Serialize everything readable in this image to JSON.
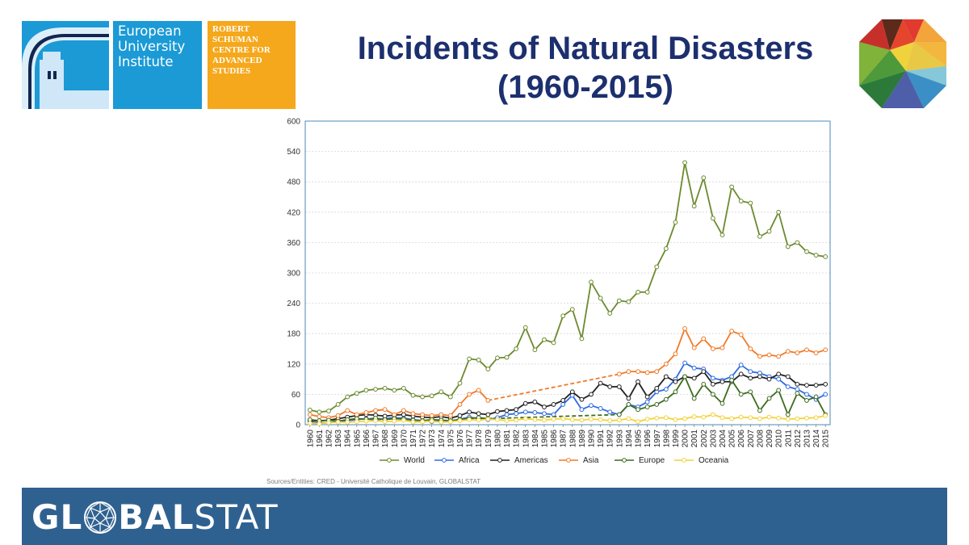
{
  "header": {
    "eui_lines": [
      "European",
      "University",
      "Institute"
    ],
    "rsc_lines": [
      "ROBERT",
      "SCHUMAN",
      "CENTRE FOR",
      "ADVANCED",
      "STUDIES"
    ],
    "title_line1": "Incidents of Natural Disasters",
    "title_line2": "(1960-2015)"
  },
  "footer": {
    "source": "Sources/Entities: CRED - Université Catholique de Louvain, GLOBALSTAT",
    "brand_left": "GL",
    "brand_mid": "BAL",
    "brand_right": "STAT"
  },
  "colors": {
    "title": "#1c2f6e",
    "eui_blue": "#1b9ad6",
    "rsc_orange": "#f5a81c",
    "footer": "#2f6190"
  },
  "chart_data": {
    "type": "line",
    "title": "Incidents of Natural Disasters (1960-2015)",
    "xlabel": "",
    "ylabel": "",
    "ylim": [
      0,
      600
    ],
    "yticks": [
      0,
      60,
      120,
      180,
      240,
      300,
      360,
      420,
      480,
      540,
      600
    ],
    "grid": true,
    "legend_position": "bottom",
    "x": [
      1960,
      1961,
      1962,
      1963,
      1964,
      1965,
      1966,
      1967,
      1968,
      1969,
      1970,
      1971,
      1972,
      1973,
      1974,
      1975,
      1976,
      1977,
      1978,
      1979,
      1980,
      1981,
      1982,
      1983,
      1984,
      1985,
      1986,
      1987,
      1988,
      1989,
      1990,
      1991,
      1992,
      1993,
      1994,
      1995,
      1996,
      1997,
      1998,
      1999,
      2000,
      2001,
      2002,
      2003,
      2004,
      2005,
      2006,
      2007,
      2008,
      2009,
      2010,
      2011,
      2012,
      2013,
      2014,
      2015
    ],
    "series": [
      {
        "name": "World",
        "color": "#6b8a2e",
        "dashed_until": null,
        "values": [
          29,
          25,
          27,
          40,
          55,
          62,
          68,
          70,
          72,
          68,
          72,
          58,
          55,
          57,
          65,
          55,
          82,
          130,
          128,
          110,
          132,
          133,
          150,
          192,
          148,
          168,
          162,
          215,
          228,
          170,
          282,
          250,
          220,
          245,
          243,
          262,
          262,
          312,
          348,
          400,
          518,
          432,
          488,
          408,
          375,
          470,
          442,
          438,
          372,
          382,
          420,
          352,
          360,
          342,
          335,
          332
        ]
      },
      {
        "name": "Africa",
        "color": "#2f6be0",
        "dashed_until": null,
        "values": [
          5,
          3,
          4,
          6,
          8,
          10,
          12,
          9,
          12,
          14,
          13,
          10,
          8,
          6,
          9,
          7,
          11,
          15,
          12,
          10,
          14,
          20,
          22,
          25,
          24,
          22,
          20,
          40,
          58,
          30,
          38,
          32,
          25,
          20,
          40,
          35,
          45,
          65,
          70,
          90,
          122,
          112,
          110,
          92,
          88,
          95,
          118,
          105,
          102,
          95,
          90,
          75,
          70,
          60,
          50,
          60
        ]
      },
      {
        "name": "Americas",
        "color": "#222222",
        "dashed_until": null,
        "values": [
          8,
          7,
          9,
          12,
          15,
          18,
          20,
          19,
          17,
          19,
          20,
          17,
          15,
          14,
          16,
          13,
          18,
          25,
          22,
          20,
          26,
          28,
          30,
          42,
          45,
          35,
          40,
          48,
          65,
          50,
          60,
          82,
          75,
          75,
          52,
          85,
          55,
          72,
          95,
          85,
          95,
          92,
          105,
          80,
          85,
          85,
          100,
          92,
          95,
          90,
          100,
          95,
          80,
          78,
          78,
          80
        ]
      },
      {
        "name": "Asia",
        "color": "#f07a28",
        "dashed_until": 1993,
        "values": [
          20,
          16,
          14,
          18,
          28,
          20,
          24,
          28,
          30,
          20,
          28,
          22,
          20,
          18,
          20,
          18,
          40,
          60,
          68,
          48,
          null,
          null,
          null,
          null,
          null,
          null,
          null,
          null,
          null,
          null,
          null,
          null,
          null,
          100,
          105,
          105,
          103,
          105,
          120,
          140,
          190,
          152,
          170,
          150,
          152,
          185,
          178,
          150,
          135,
          138,
          135,
          145,
          142,
          148,
          142,
          148
        ]
      },
      {
        "name": "Europe",
        "color": "#3d6b1f",
        "dashed_until": 1993,
        "values": [
          10,
          8,
          9,
          7,
          10,
          12,
          11,
          13,
          10,
          12,
          11,
          9,
          8,
          10,
          9,
          8,
          10,
          12,
          14,
          12,
          null,
          null,
          null,
          null,
          null,
          null,
          null,
          null,
          null,
          null,
          null,
          null,
          null,
          20,
          40,
          30,
          35,
          40,
          50,
          65,
          95,
          52,
          80,
          60,
          42,
          88,
          60,
          65,
          28,
          52,
          68,
          20,
          62,
          48,
          55,
          20
        ]
      },
      {
        "name": "Oceania",
        "color": "#f2d23a",
        "dashed_until": null,
        "values": [
          3,
          2,
          4,
          5,
          5,
          6,
          7,
          8,
          6,
          7,
          9,
          5,
          6,
          7,
          5,
          6,
          8,
          10,
          9,
          11,
          10,
          8,
          9,
          12,
          10,
          9,
          11,
          12,
          10,
          9,
          11,
          10,
          8,
          9,
          12,
          6,
          11,
          13,
          14,
          10,
          12,
          16,
          15,
          20,
          14,
          12,
          15,
          14,
          12,
          15,
          13,
          11,
          12,
          13,
          14,
          18
        ]
      }
    ]
  }
}
